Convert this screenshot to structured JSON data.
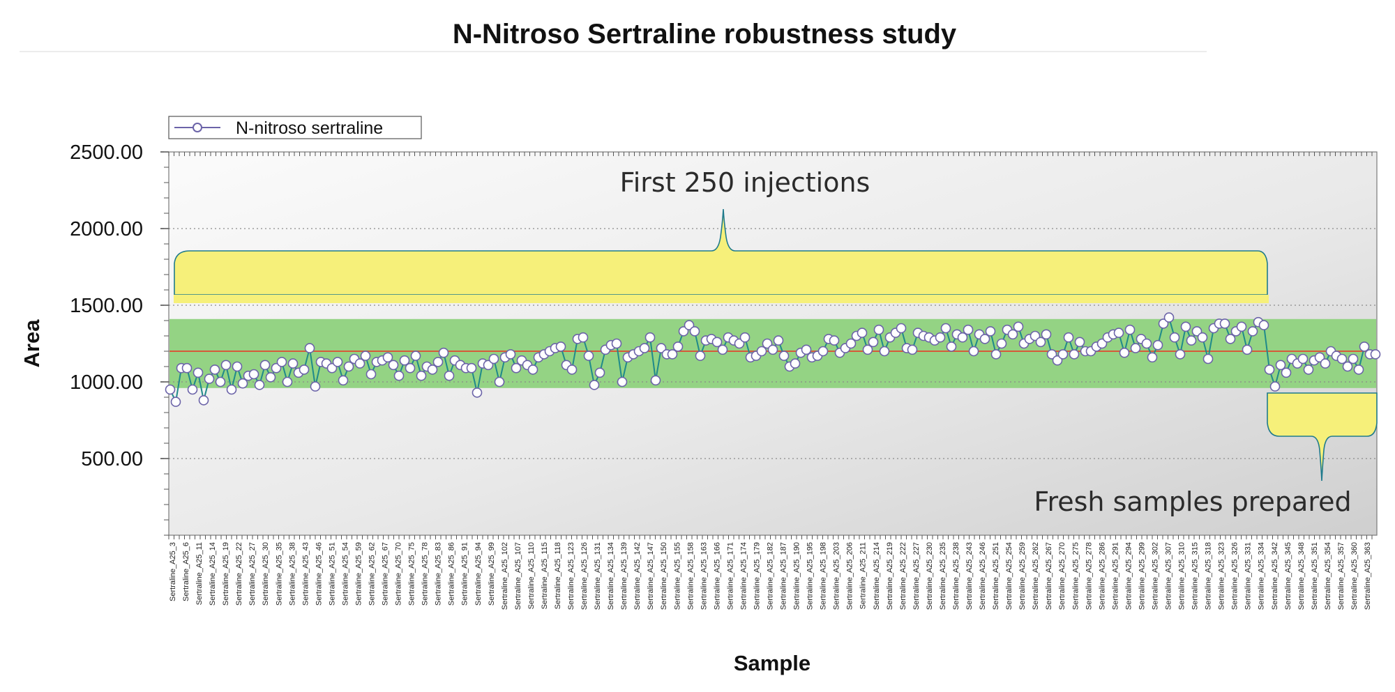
{
  "chart_data": {
    "type": "line",
    "title": "N-Nitroso Sertraline robustness study",
    "xlabel": "Sample",
    "ylabel": "Area",
    "ylim": [
      0,
      2500
    ],
    "y_ticks": [
      500,
      1000,
      1500,
      2000,
      2500
    ],
    "y_tick_labels": [
      "500.00",
      "1000.00",
      "1500.00",
      "2000.00",
      "2500.00"
    ],
    "legend": {
      "label": "N-nitroso sertraline",
      "position": "top-left"
    },
    "acceptance_band": {
      "low": 960,
      "high": 1410
    },
    "mean_line": 1200,
    "x_tick_labels": [
      "Sertraline_A25_3",
      "Sertraline_A25_6",
      "Sertraline_A25_11",
      "Sertraline_A25_14",
      "Sertraline_A25_19",
      "Sertraline_A25_22",
      "Sertraline_A25_27",
      "Sertraline_A25_30",
      "Sertraline_A25_35",
      "Sertraline_A25_38",
      "Sertraline_A25_43",
      "Sertraline_A25_46",
      "Sertraline_A25_51",
      "Sertraline_A25_54",
      "Sertraline_A25_59",
      "Sertraline_A25_62",
      "Sertraline_A25_67",
      "Sertraline_A25_70",
      "Sertraline_A25_75",
      "Sertraline_A25_78",
      "Sertraline_A25_83",
      "Sertraline_A25_86",
      "Sertraline_A25_91",
      "Sertraline_A25_94",
      "Sertraline_A25_99",
      "Sertraline_A25_102",
      "Sertraline_A25_107",
      "Sertraline_A25_110",
      "Sertraline_A25_115",
      "Sertraline_A25_118",
      "Sertraline_A25_123",
      "Sertraline_A25_126",
      "Sertraline_A25_131",
      "Sertraline_A25_134",
      "Sertraline_A25_139",
      "Sertraline_A25_142",
      "Sertraline_A25_147",
      "Sertraline_A25_150",
      "Sertraline_A25_155",
      "Sertraline_A25_158",
      "Sertraline_A25_163",
      "Sertraline_A25_166",
      "Sertraline_A25_171",
      "Sertraline_A25_174",
      "Sertraline_A25_179",
      "Sertraline_A25_182",
      "Sertraline_A25_187",
      "Sertraline_A25_190",
      "Sertraline_A25_195",
      "Sertraline_A25_198",
      "Sertraline_A25_203",
      "Sertraline_A25_206",
      "Sertraline_A25_211",
      "Sertraline_A25_214",
      "Sertraline_A25_219",
      "Sertraline_A25_222",
      "Sertraline_A25_227",
      "Sertraline_A25_230",
      "Sertraline_A25_235",
      "Sertraline_A25_238",
      "Sertraline_A25_243",
      "Sertraline_A25_246",
      "Sertraline_A25_251",
      "Sertraline_A25_254",
      "Sertraline_A25_259",
      "Sertraline_A25_262",
      "Sertraline_A25_267",
      "Sertraline_A25_270",
      "Sertraline_A25_275",
      "Sertraline_A25_278",
      "Sertraline_A25_286",
      "Sertraline_A25_291",
      "Sertraline_A25_294",
      "Sertraline_A25_299",
      "Sertraline_A25_302",
      "Sertraline_A25_307",
      "Sertraline_A25_310",
      "Sertraline_A25_315",
      "Sertraline_A25_318",
      "Sertraline_A25_323",
      "Sertraline_A25_326",
      "Sertraline_A25_331",
      "Sertraline_A25_334",
      "Sertraline_A25_342",
      "Sertraline_A25_345",
      "Sertraline_A25_348",
      "Sertraline_A25_351",
      "Sertraline_A25_354",
      "Sertraline_A25_357",
      "Sertraline_A25_360",
      "Sertraline_A25_363"
    ],
    "series": [
      {
        "name": "N-nitroso sertraline",
        "color": "#1f8a8a",
        "values": [
          950,
          870,
          1090,
          1090,
          950,
          1060,
          880,
          1020,
          1080,
          1000,
          1110,
          950,
          1100,
          990,
          1040,
          1050,
          980,
          1110,
          1030,
          1090,
          1130,
          1000,
          1120,
          1060,
          1080,
          1220,
          970,
          1130,
          1120,
          1090,
          1130,
          1010,
          1100,
          1150,
          1120,
          1170,
          1050,
          1130,
          1140,
          1160,
          1110,
          1040,
          1140,
          1090,
          1170,
          1040,
          1100,
          1080,
          1130,
          1190,
          1040,
          1140,
          1110,
          1090,
          1090,
          930,
          1120,
          1110,
          1150,
          1000,
          1160,
          1180,
          1090,
          1140,
          1110,
          1080,
          1160,
          1180,
          1200,
          1220,
          1230,
          1110,
          1080,
          1280,
          1290,
          1170,
          980,
          1060,
          1210,
          1240,
          1250,
          1000,
          1160,
          1180,
          1200,
          1220,
          1290,
          1010,
          1220,
          1180,
          1180,
          1230,
          1330,
          1370,
          1330,
          1170,
          1270,
          1280,
          1260,
          1210,
          1290,
          1270,
          1250,
          1290,
          1160,
          1170,
          1200,
          1250,
          1210,
          1270,
          1170,
          1100,
          1120,
          1190,
          1210,
          1160,
          1170,
          1200,
          1280,
          1270,
          1190,
          1220,
          1250,
          1300,
          1320,
          1210,
          1260,
          1340,
          1200,
          1290,
          1320,
          1350,
          1220,
          1210,
          1320,
          1300,
          1290,
          1270,
          1290,
          1350,
          1230,
          1310,
          1290,
          1340,
          1200,
          1310,
          1280,
          1330,
          1180,
          1250,
          1340,
          1310,
          1360,
          1250,
          1280,
          1300,
          1260,
          1310,
          1180,
          1140,
          1180,
          1290,
          1180,
          1260,
          1200,
          1200,
          1230,
          1250,
          1290,
          1310,
          1320,
          1190,
          1340,
          1220,
          1280,
          1250,
          1160,
          1240,
          1380,
          1420,
          1290,
          1180,
          1360,
          1270,
          1330,
          1290,
          1150,
          1350,
          1380,
          1380,
          1280,
          1330,
          1360,
          1210,
          1330,
          1390,
          1370,
          1080,
          970,
          1110,
          1060,
          1150,
          1120,
          1150,
          1080,
          1140,
          1160,
          1120,
          1200,
          1170,
          1150,
          1100,
          1150,
          1080,
          1230,
          1180,
          1180
        ]
      }
    ],
    "annotations": [
      "First 250 injections",
      "Fresh samples prepared"
    ]
  }
}
